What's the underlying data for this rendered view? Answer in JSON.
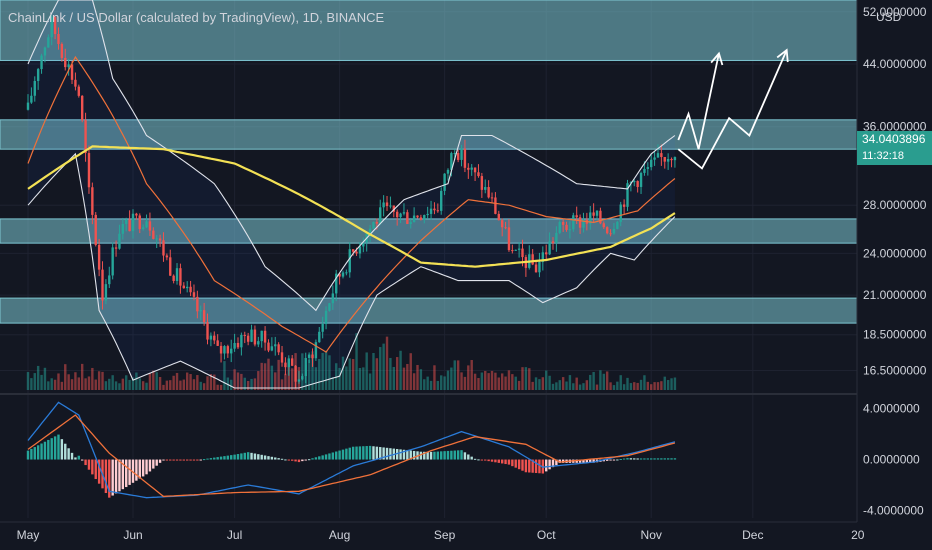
{
  "header": {
    "title": "ChainLink / US Dollar (calculated by TradingView), 1D, BINANCE",
    "currency": "USD"
  },
  "last_price": {
    "value": "34.0403896",
    "countdown": "11:32:18"
  },
  "colors": {
    "background": "#131722",
    "zone_fill": "#7ec8d3",
    "up": "#26a69a",
    "down": "#ef5350",
    "ma200": "#f3e155",
    "ma_short": "#f0713a",
    "bollinger": "#e0e3eb",
    "projection": "#ffffff",
    "macd_line": "#2a7bd8",
    "signal_line": "#f0713a",
    "axis_text": "#d1d4dc",
    "price_tag": "#2a9d8f"
  },
  "chart_data": [
    {
      "type": "candlestick",
      "title": "ChainLink / US Dollar (calculated by TradingView), 1D, BINANCE",
      "y_scale": "log",
      "ylim": [
        15.5,
        54
      ],
      "y_tick_labels": [
        "52.0000000",
        "44.0000000",
        "36.0000000",
        "28.0000000",
        "24.0000000",
        "21.0000000",
        "18.5000000",
        "16.5000000"
      ],
      "x_tick_labels": [
        "May",
        "Jun",
        "Jul",
        "Aug",
        "Sep",
        "Oct",
        "Nov",
        "Dec",
        "20"
      ],
      "x_months": [
        "2021-05-01",
        "2021-06-01",
        "2021-07-01",
        "2021-08-01",
        "2021-09-01",
        "2021-10-01",
        "2021-11-01",
        "2021-12-01",
        "2022-01-01"
      ],
      "last_date": "2021-11-08",
      "close_anchors": [
        [
          "2021-05-01",
          38
        ],
        [
          "2021-05-04",
          44
        ],
        [
          "2021-05-08",
          50
        ],
        [
          "2021-05-11",
          46
        ],
        [
          "2021-05-16",
          40
        ],
        [
          "2021-05-19",
          29
        ],
        [
          "2021-05-23",
          21
        ],
        [
          "2021-05-28",
          26
        ],
        [
          "2021-06-05",
          27
        ],
        [
          "2021-06-12",
          23
        ],
        [
          "2021-06-20",
          20
        ],
        [
          "2021-06-26",
          17.5
        ],
        [
          "2021-07-05",
          18.5
        ],
        [
          "2021-07-12",
          18
        ],
        [
          "2021-07-20",
          16
        ],
        [
          "2021-07-25",
          18
        ],
        [
          "2021-07-31",
          22
        ],
        [
          "2021-08-07",
          25
        ],
        [
          "2021-08-14",
          27.5
        ],
        [
          "2021-08-22",
          27
        ],
        [
          "2021-08-30",
          28
        ],
        [
          "2021-09-04",
          34
        ],
        [
          "2021-09-07",
          32
        ],
        [
          "2021-09-14",
          29
        ],
        [
          "2021-09-21",
          24
        ],
        [
          "2021-09-28",
          23
        ],
        [
          "2021-10-05",
          26
        ],
        [
          "2021-10-15",
          27
        ],
        [
          "2021-10-20",
          26
        ],
        [
          "2021-10-26",
          30
        ],
        [
          "2021-11-02",
          32
        ],
        [
          "2021-11-08",
          33.5
        ]
      ],
      "ma200_anchors": [
        [
          "2021-05-01",
          29.5
        ],
        [
          "2021-05-20",
          33.8
        ],
        [
          "2021-06-10",
          33.5
        ],
        [
          "2021-07-01",
          32
        ],
        [
          "2021-07-20",
          29
        ],
        [
          "2021-08-10",
          25.5
        ],
        [
          "2021-08-25",
          23.3
        ],
        [
          "2021-09-10",
          23
        ],
        [
          "2021-10-01",
          23.5
        ],
        [
          "2021-10-20",
          24.5
        ],
        [
          "2021-11-01",
          26
        ],
        [
          "2021-11-08",
          27.3
        ]
      ],
      "ma_short_anchors": [
        [
          "2021-05-01",
          32
        ],
        [
          "2021-05-15",
          45
        ],
        [
          "2021-05-25",
          38
        ],
        [
          "2021-06-05",
          30
        ],
        [
          "2021-06-25",
          22
        ],
        [
          "2021-07-15",
          19
        ],
        [
          "2021-07-28",
          17.5
        ],
        [
          "2021-08-10",
          21
        ],
        [
          "2021-08-25",
          25
        ],
        [
          "2021-09-08",
          28.5
        ],
        [
          "2021-09-20",
          28
        ],
        [
          "2021-10-01",
          27
        ],
        [
          "2021-10-15",
          26.5
        ],
        [
          "2021-10-28",
          27.5
        ],
        [
          "2021-11-08",
          30.5
        ]
      ],
      "bollinger_upper_anchors": [
        [
          "2021-05-01",
          44
        ],
        [
          "2021-05-10",
          54
        ],
        [
          "2021-05-20",
          54
        ],
        [
          "2021-05-26",
          42
        ],
        [
          "2021-06-05",
          35
        ],
        [
          "2021-06-25",
          30
        ],
        [
          "2021-07-10",
          23
        ],
        [
          "2021-07-25",
          20
        ],
        [
          "2021-08-05",
          24
        ],
        [
          "2021-08-20",
          28.5
        ],
        [
          "2021-09-02",
          30
        ],
        [
          "2021-09-06",
          35
        ],
        [
          "2021-09-15",
          35
        ],
        [
          "2021-09-25",
          33
        ],
        [
          "2021-10-10",
          30
        ],
        [
          "2021-10-25",
          29.5
        ],
        [
          "2021-11-01",
          33
        ],
        [
          "2021-11-08",
          35
        ]
      ],
      "bollinger_lower_anchors": [
        [
          "2021-05-01",
          28
        ],
        [
          "2021-05-15",
          33
        ],
        [
          "2021-05-22",
          20
        ],
        [
          "2021-06-01",
          16
        ],
        [
          "2021-06-15",
          17
        ],
        [
          "2021-07-01",
          15.6
        ],
        [
          "2021-07-20",
          15.6
        ],
        [
          "2021-08-01",
          16.2
        ],
        [
          "2021-08-12",
          21
        ],
        [
          "2021-08-25",
          23
        ],
        [
          "2021-09-05",
          22
        ],
        [
          "2021-09-20",
          22
        ],
        [
          "2021-09-30",
          20.5
        ],
        [
          "2021-10-10",
          21.5
        ],
        [
          "2021-10-20",
          24
        ],
        [
          "2021-10-27",
          23.5
        ],
        [
          "2021-11-08",
          27
        ]
      ],
      "support_resistance_zones": [
        [
          44.5,
          54
        ],
        [
          33.5,
          36.8
        ],
        [
          24.8,
          26.8
        ],
        [
          19.2,
          20.8
        ]
      ],
      "projection_path": [
        [
          "2021-11-09",
          34.5
        ],
        [
          "2021-11-12",
          37.5
        ],
        [
          "2021-11-15",
          33.5
        ],
        [
          "2021-11-21",
          45.5
        ]
      ],
      "projection_path_2": [
        [
          "2021-11-09",
          33.5
        ],
        [
          "2021-11-16",
          31.5
        ],
        [
          "2021-11-24",
          37
        ],
        [
          "2021-11-30",
          35
        ],
        [
          "2021-12-11",
          46
        ]
      ]
    },
    {
      "type": "bar",
      "title": "",
      "series": [
        {
          "name": "",
          "values": [
            1.2,
            0.9,
            0.8,
            1.5,
            1.8,
            2.6,
            1.4,
            1.1,
            0.9,
            0.7
          ]
        }
      ],
      "note_values": "relative daily volume, scaled",
      "x_tick_labels": [
        "May",
        "Jun",
        "Jul",
        "Aug",
        "Sep",
        "Oct",
        "Nov",
        "Dec",
        "20"
      ]
    },
    {
      "type": "line",
      "title": "",
      "ylim": [
        -4.6,
        5.0
      ],
      "y_tick_labels": [
        "4.0000000",
        "0.0000000",
        "-4.0000000"
      ],
      "macd_anchors": [
        [
          "2021-05-01",
          1.5
        ],
        [
          "2021-05-10",
          4.5
        ],
        [
          "2021-05-16",
          3.5
        ],
        [
          "2021-05-25",
          -2.5
        ],
        [
          "2021-06-05",
          -3.0
        ],
        [
          "2021-06-20",
          -2.8
        ],
        [
          "2021-07-05",
          -2.0
        ],
        [
          "2021-07-20",
          -2.7
        ],
        [
          "2021-08-05",
          -0.5
        ],
        [
          "2021-08-25",
          1.0
        ],
        [
          "2021-09-06",
          2.2
        ],
        [
          "2021-09-20",
          1.0
        ],
        [
          "2021-09-30",
          -0.6
        ],
        [
          "2021-10-15",
          -0.2
        ],
        [
          "2021-10-28",
          0.6
        ],
        [
          "2021-11-08",
          1.4
        ]
      ],
      "signal_anchors": [
        [
          "2021-05-01",
          0.8
        ],
        [
          "2021-05-15",
          3.5
        ],
        [
          "2021-05-25",
          0.5
        ],
        [
          "2021-06-10",
          -2.9
        ],
        [
          "2021-07-01",
          -2.6
        ],
        [
          "2021-07-20",
          -2.5
        ],
        [
          "2021-08-10",
          -1.2
        ],
        [
          "2021-08-28",
          0.7
        ],
        [
          "2021-09-10",
          1.8
        ],
        [
          "2021-09-25",
          1.2
        ],
        [
          "2021-10-05",
          -0.2
        ],
        [
          "2021-10-25",
          0.3
        ],
        [
          "2021-11-08",
          1.3
        ]
      ]
    }
  ]
}
